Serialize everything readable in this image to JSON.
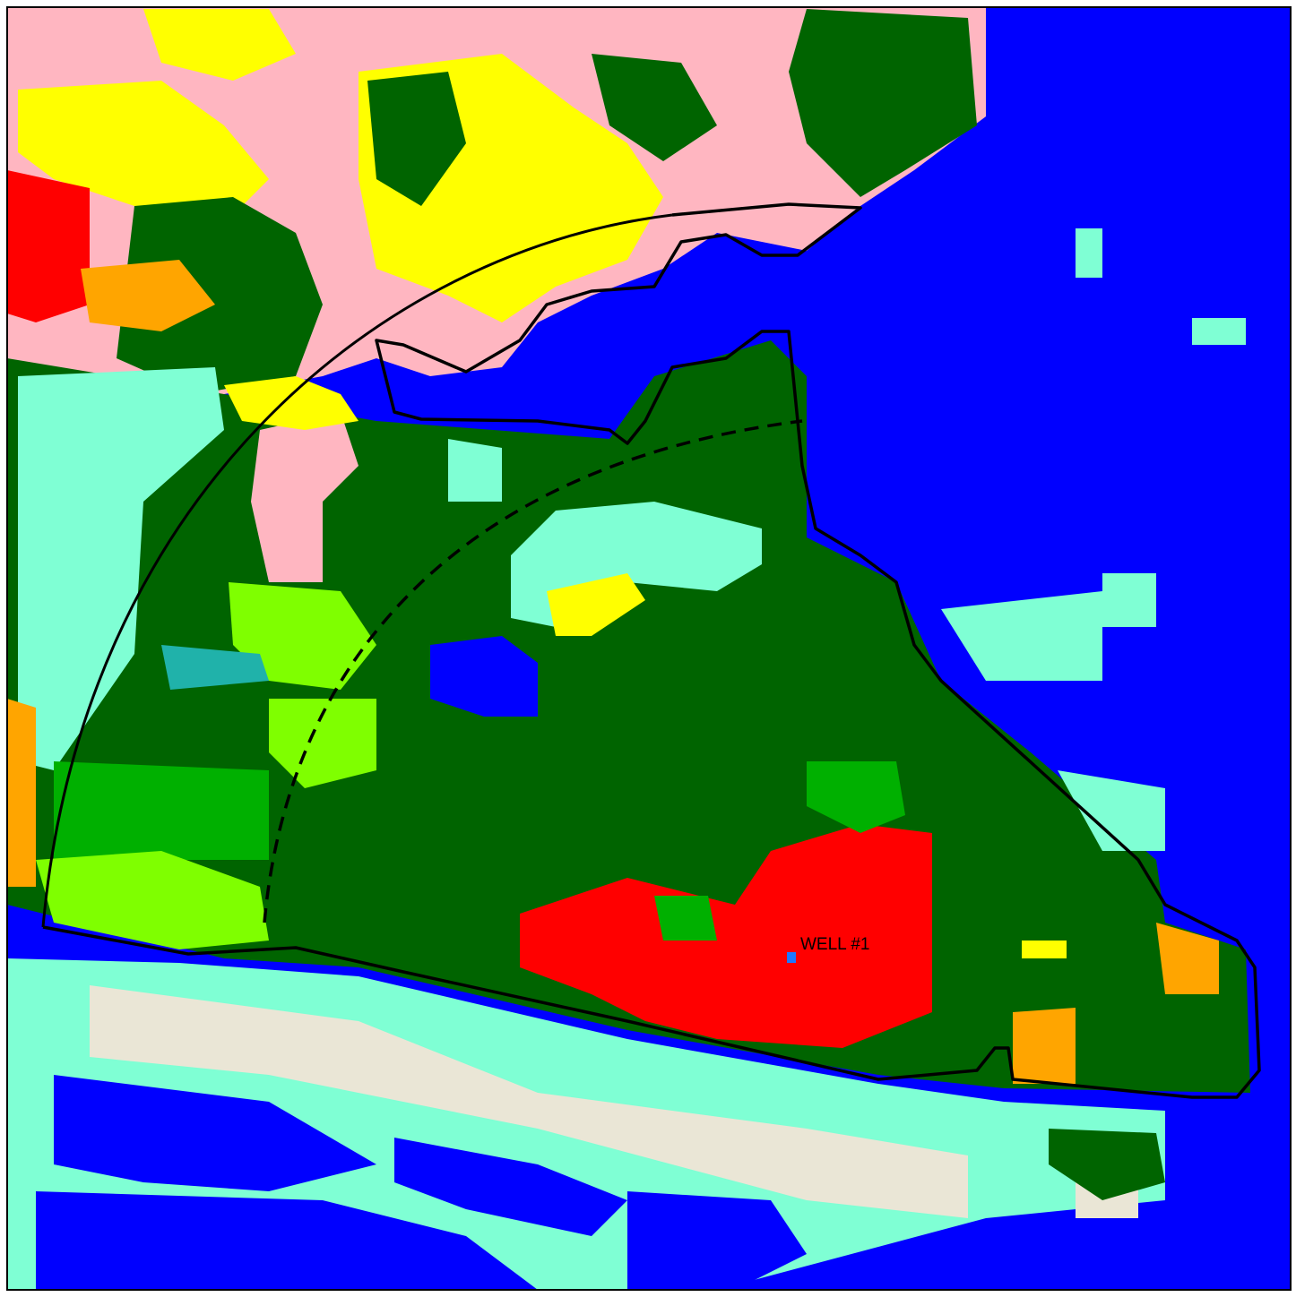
{
  "map": {
    "label": "WELL #1"
  }
}
